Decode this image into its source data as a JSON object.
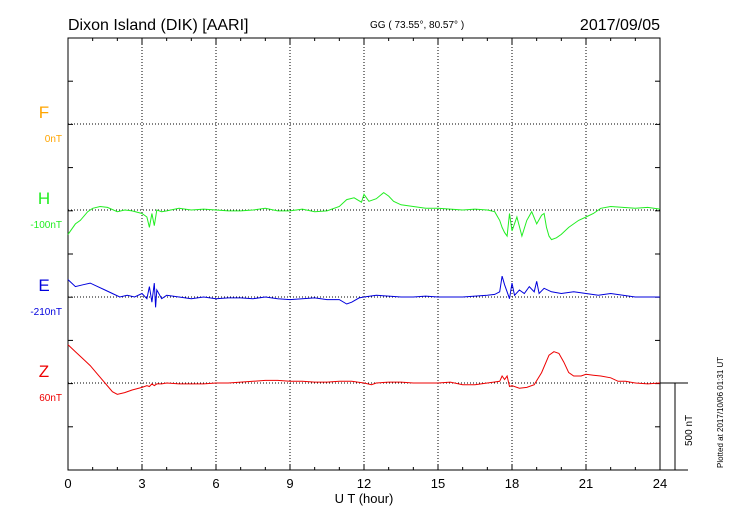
{
  "header": {
    "station": "Dixon Island (DIK)  [AARI]",
    "coords": "GG ( 73.55°,  80.57° )",
    "date": "2017/09/05"
  },
  "side_note": "Plotted at 2017/10/06 01:31 UT",
  "scale_label": "500 nT",
  "chart_data": {
    "type": "line",
    "xlabel": "U T (hour)",
    "xlim": [
      0,
      24
    ],
    "x_ticks": [
      "0",
      "3",
      "6",
      "9",
      "12",
      "15",
      "18",
      "21",
      "24"
    ],
    "grid": true,
    "scale_bar_nT": 500,
    "series": [
      {
        "name": "F",
        "baseline_label": "0nT",
        "color": "#ffa500",
        "points": []
      },
      {
        "name": "H",
        "baseline_label": "-100nT",
        "color": "#22ee22",
        "points": [
          [
            0,
            -140
          ],
          [
            0.3,
            -80
          ],
          [
            0.5,
            -60
          ],
          [
            0.8,
            -10
          ],
          [
            1,
            10
          ],
          [
            1.3,
            20
          ],
          [
            1.6,
            15
          ],
          [
            2,
            -10
          ],
          [
            2.3,
            0
          ],
          [
            2.6,
            -5
          ],
          [
            3,
            -20
          ],
          [
            3.2,
            -40
          ],
          [
            3.3,
            -100
          ],
          [
            3.4,
            -20
          ],
          [
            3.5,
            -90
          ],
          [
            3.6,
            0
          ],
          [
            3.8,
            -10
          ],
          [
            4,
            -5
          ],
          [
            4.5,
            10
          ],
          [
            5,
            0
          ],
          [
            5.5,
            5
          ],
          [
            6,
            0
          ],
          [
            6.5,
            -5
          ],
          [
            7,
            -5
          ],
          [
            7.5,
            0
          ],
          [
            8,
            10
          ],
          [
            8.5,
            -5
          ],
          [
            9,
            -5
          ],
          [
            9.5,
            5
          ],
          [
            10,
            -10
          ],
          [
            10.5,
            -5
          ],
          [
            11,
            20
          ],
          [
            11.3,
            60
          ],
          [
            11.6,
            70
          ],
          [
            11.9,
            45
          ],
          [
            12,
            90
          ],
          [
            12.2,
            50
          ],
          [
            12.5,
            65
          ],
          [
            12.8,
            100
          ],
          [
            13,
            80
          ],
          [
            13.2,
            50
          ],
          [
            13.5,
            30
          ],
          [
            14,
            20
          ],
          [
            14.5,
            10
          ],
          [
            15,
            10
          ],
          [
            15.5,
            5
          ],
          [
            16,
            0
          ],
          [
            16.5,
            5
          ],
          [
            17,
            0
          ],
          [
            17.3,
            -10
          ],
          [
            17.5,
            -60
          ],
          [
            17.6,
            -100
          ],
          [
            17.7,
            -130
          ],
          [
            17.8,
            -150
          ],
          [
            17.9,
            -20
          ],
          [
            18,
            -120
          ],
          [
            18.2,
            -40
          ],
          [
            18.4,
            -150
          ],
          [
            18.6,
            -60
          ],
          [
            18.8,
            -10
          ],
          [
            19,
            -80
          ],
          [
            19.2,
            -30
          ],
          [
            19.3,
            -20
          ],
          [
            19.4,
            -100
          ],
          [
            19.5,
            -150
          ],
          [
            19.6,
            -170
          ],
          [
            19.8,
            -160
          ],
          [
            20,
            -140
          ],
          [
            20.3,
            -100
          ],
          [
            20.7,
            -60
          ],
          [
            21,
            -40
          ],
          [
            21.3,
            -20
          ],
          [
            21.6,
            10
          ],
          [
            22,
            20
          ],
          [
            22.5,
            15
          ],
          [
            23,
            10
          ],
          [
            23.5,
            15
          ],
          [
            24,
            5
          ]
        ]
      },
      {
        "name": "E",
        "baseline_label": "-210nT",
        "color": "#0000dd",
        "points": [
          [
            0,
            100
          ],
          [
            0.3,
            60
          ],
          [
            0.6,
            70
          ],
          [
            0.9,
            80
          ],
          [
            1.2,
            60
          ],
          [
            1.5,
            40
          ],
          [
            1.8,
            20
          ],
          [
            2.1,
            0
          ],
          [
            2.4,
            10
          ],
          [
            2.7,
            0
          ],
          [
            3,
            20
          ],
          [
            3.2,
            -10
          ],
          [
            3.3,
            60
          ],
          [
            3.4,
            -30
          ],
          [
            3.5,
            80
          ],
          [
            3.55,
            -60
          ],
          [
            3.6,
            40
          ],
          [
            3.8,
            -10
          ],
          [
            4,
            10
          ],
          [
            4.5,
            0
          ],
          [
            5,
            -10
          ],
          [
            5.5,
            0
          ],
          [
            6,
            -10
          ],
          [
            6.5,
            -5
          ],
          [
            7,
            -5
          ],
          [
            7.5,
            -10
          ],
          [
            8,
            0
          ],
          [
            8.5,
            -10
          ],
          [
            9,
            -15
          ],
          [
            9.5,
            -10
          ],
          [
            10,
            -5
          ],
          [
            10.5,
            -15
          ],
          [
            11,
            -15
          ],
          [
            11.3,
            -40
          ],
          [
            11.5,
            -30
          ],
          [
            11.8,
            -5
          ],
          [
            12,
            0
          ],
          [
            12.5,
            10
          ],
          [
            13,
            5
          ],
          [
            13.5,
            0
          ],
          [
            14,
            0
          ],
          [
            14.5,
            5
          ],
          [
            15,
            0
          ],
          [
            15.5,
            0
          ],
          [
            16,
            0
          ],
          [
            16.5,
            5
          ],
          [
            17,
            10
          ],
          [
            17.3,
            15
          ],
          [
            17.5,
            30
          ],
          [
            17.6,
            120
          ],
          [
            17.7,
            70
          ],
          [
            17.8,
            30
          ],
          [
            17.9,
            -10
          ],
          [
            18,
            80
          ],
          [
            18.1,
            10
          ],
          [
            18.3,
            40
          ],
          [
            18.5,
            20
          ],
          [
            18.7,
            60
          ],
          [
            18.9,
            30
          ],
          [
            19,
            90
          ],
          [
            19.1,
            20
          ],
          [
            19.3,
            50
          ],
          [
            19.6,
            30
          ],
          [
            20,
            20
          ],
          [
            20.5,
            30
          ],
          [
            21,
            20
          ],
          [
            21.5,
            10
          ],
          [
            22,
            20
          ],
          [
            22.5,
            10
          ],
          [
            23,
            0
          ],
          [
            23.5,
            0
          ],
          [
            24,
            0
          ]
        ]
      },
      {
        "name": "Z",
        "baseline_label": "60nT",
        "color": "#ee0000",
        "points": [
          [
            0,
            220
          ],
          [
            0.3,
            180
          ],
          [
            0.6,
            140
          ],
          [
            0.9,
            100
          ],
          [
            1.2,
            50
          ],
          [
            1.5,
            0
          ],
          [
            1.8,
            -50
          ],
          [
            2,
            -65
          ],
          [
            2.3,
            -55
          ],
          [
            2.6,
            -40
          ],
          [
            3,
            -25
          ],
          [
            3.2,
            -15
          ],
          [
            3.3,
            -20
          ],
          [
            3.4,
            -5
          ],
          [
            3.5,
            -15
          ],
          [
            3.6,
            -5
          ],
          [
            3.8,
            -5
          ],
          [
            4,
            0
          ],
          [
            4.5,
            -5
          ],
          [
            5,
            -5
          ],
          [
            5.5,
            -5
          ],
          [
            6,
            0
          ],
          [
            6.5,
            0
          ],
          [
            7,
            5
          ],
          [
            7.5,
            10
          ],
          [
            8,
            15
          ],
          [
            8.5,
            15
          ],
          [
            9,
            10
          ],
          [
            9.5,
            10
          ],
          [
            10,
            5
          ],
          [
            10.5,
            5
          ],
          [
            11,
            10
          ],
          [
            11.5,
            10
          ],
          [
            12,
            0
          ],
          [
            12.3,
            -10
          ],
          [
            12.5,
            0
          ],
          [
            13,
            5
          ],
          [
            13.5,
            5
          ],
          [
            14,
            0
          ],
          [
            14.5,
            0
          ],
          [
            15,
            0
          ],
          [
            15.5,
            5
          ],
          [
            16,
            -10
          ],
          [
            16.5,
            -10
          ],
          [
            17,
            0
          ],
          [
            17.5,
            10
          ],
          [
            17.6,
            40
          ],
          [
            17.7,
            20
          ],
          [
            17.8,
            40
          ],
          [
            17.9,
            -20
          ],
          [
            18,
            -15
          ],
          [
            18.3,
            -30
          ],
          [
            18.6,
            -25
          ],
          [
            18.9,
            -10
          ],
          [
            19.2,
            60
          ],
          [
            19.5,
            160
          ],
          [
            19.7,
            180
          ],
          [
            19.9,
            170
          ],
          [
            20.1,
            120
          ],
          [
            20.3,
            60
          ],
          [
            20.5,
            40
          ],
          [
            20.8,
            40
          ],
          [
            21,
            50
          ],
          [
            21.3,
            45
          ],
          [
            21.6,
            40
          ],
          [
            22,
            30
          ],
          [
            22.3,
            10
          ],
          [
            22.6,
            10
          ],
          [
            23,
            0
          ],
          [
            23.5,
            -5
          ],
          [
            24,
            0
          ]
        ]
      }
    ]
  }
}
